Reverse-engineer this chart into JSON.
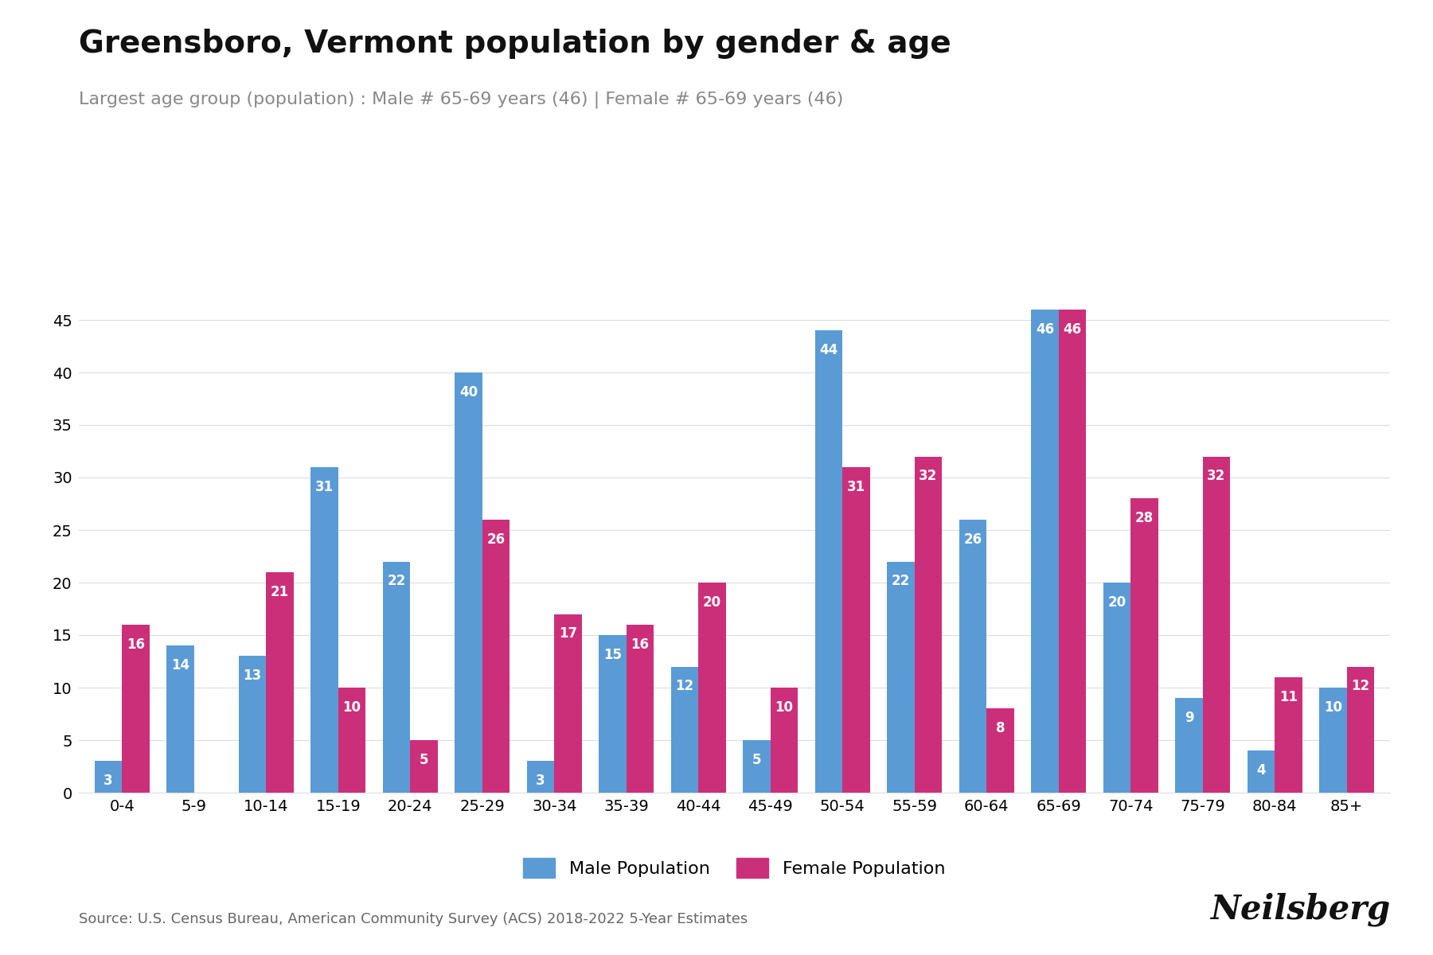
{
  "title": "Greensboro, Vermont population by gender & age",
  "subtitle": "Largest age group (population) : Male # 65-69 years (46) | Female # 65-69 years (46)",
  "source": "Source: U.S. Census Bureau, American Community Survey (ACS) 2018-2022 5-Year Estimates",
  "age_groups": [
    "0-4",
    "5-9",
    "10-14",
    "15-19",
    "20-24",
    "25-29",
    "30-34",
    "35-39",
    "40-44",
    "45-49",
    "50-54",
    "55-59",
    "60-64",
    "65-69",
    "70-74",
    "75-79",
    "80-84",
    "85+"
  ],
  "male": [
    3,
    14,
    13,
    31,
    22,
    40,
    3,
    15,
    12,
    5,
    44,
    22,
    26,
    46,
    20,
    9,
    4,
    10
  ],
  "female": [
    16,
    0,
    21,
    10,
    5,
    26,
    17,
    16,
    20,
    10,
    31,
    32,
    8,
    46,
    28,
    32,
    11,
    12
  ],
  "male_color": "#5B9BD5",
  "female_color": "#CC2F7A",
  "bar_width": 0.38,
  "ylim": [
    0,
    50
  ],
  "yticks": [
    0,
    5,
    10,
    15,
    20,
    25,
    30,
    35,
    40,
    45
  ],
  "legend_labels": [
    "Male Population",
    "Female Population"
  ],
  "title_fontsize": 28,
  "subtitle_fontsize": 16,
  "source_fontsize": 13,
  "tick_fontsize": 14,
  "label_fontsize": 12,
  "neilsberg_fontsize": 30,
  "background_color": "#FFFFFF",
  "grid_color": "#DDDDDD",
  "value_label_color": "#FFFFFF",
  "subtitle_color": "#888888",
  "source_color": "#666666",
  "title_color": "#111111"
}
